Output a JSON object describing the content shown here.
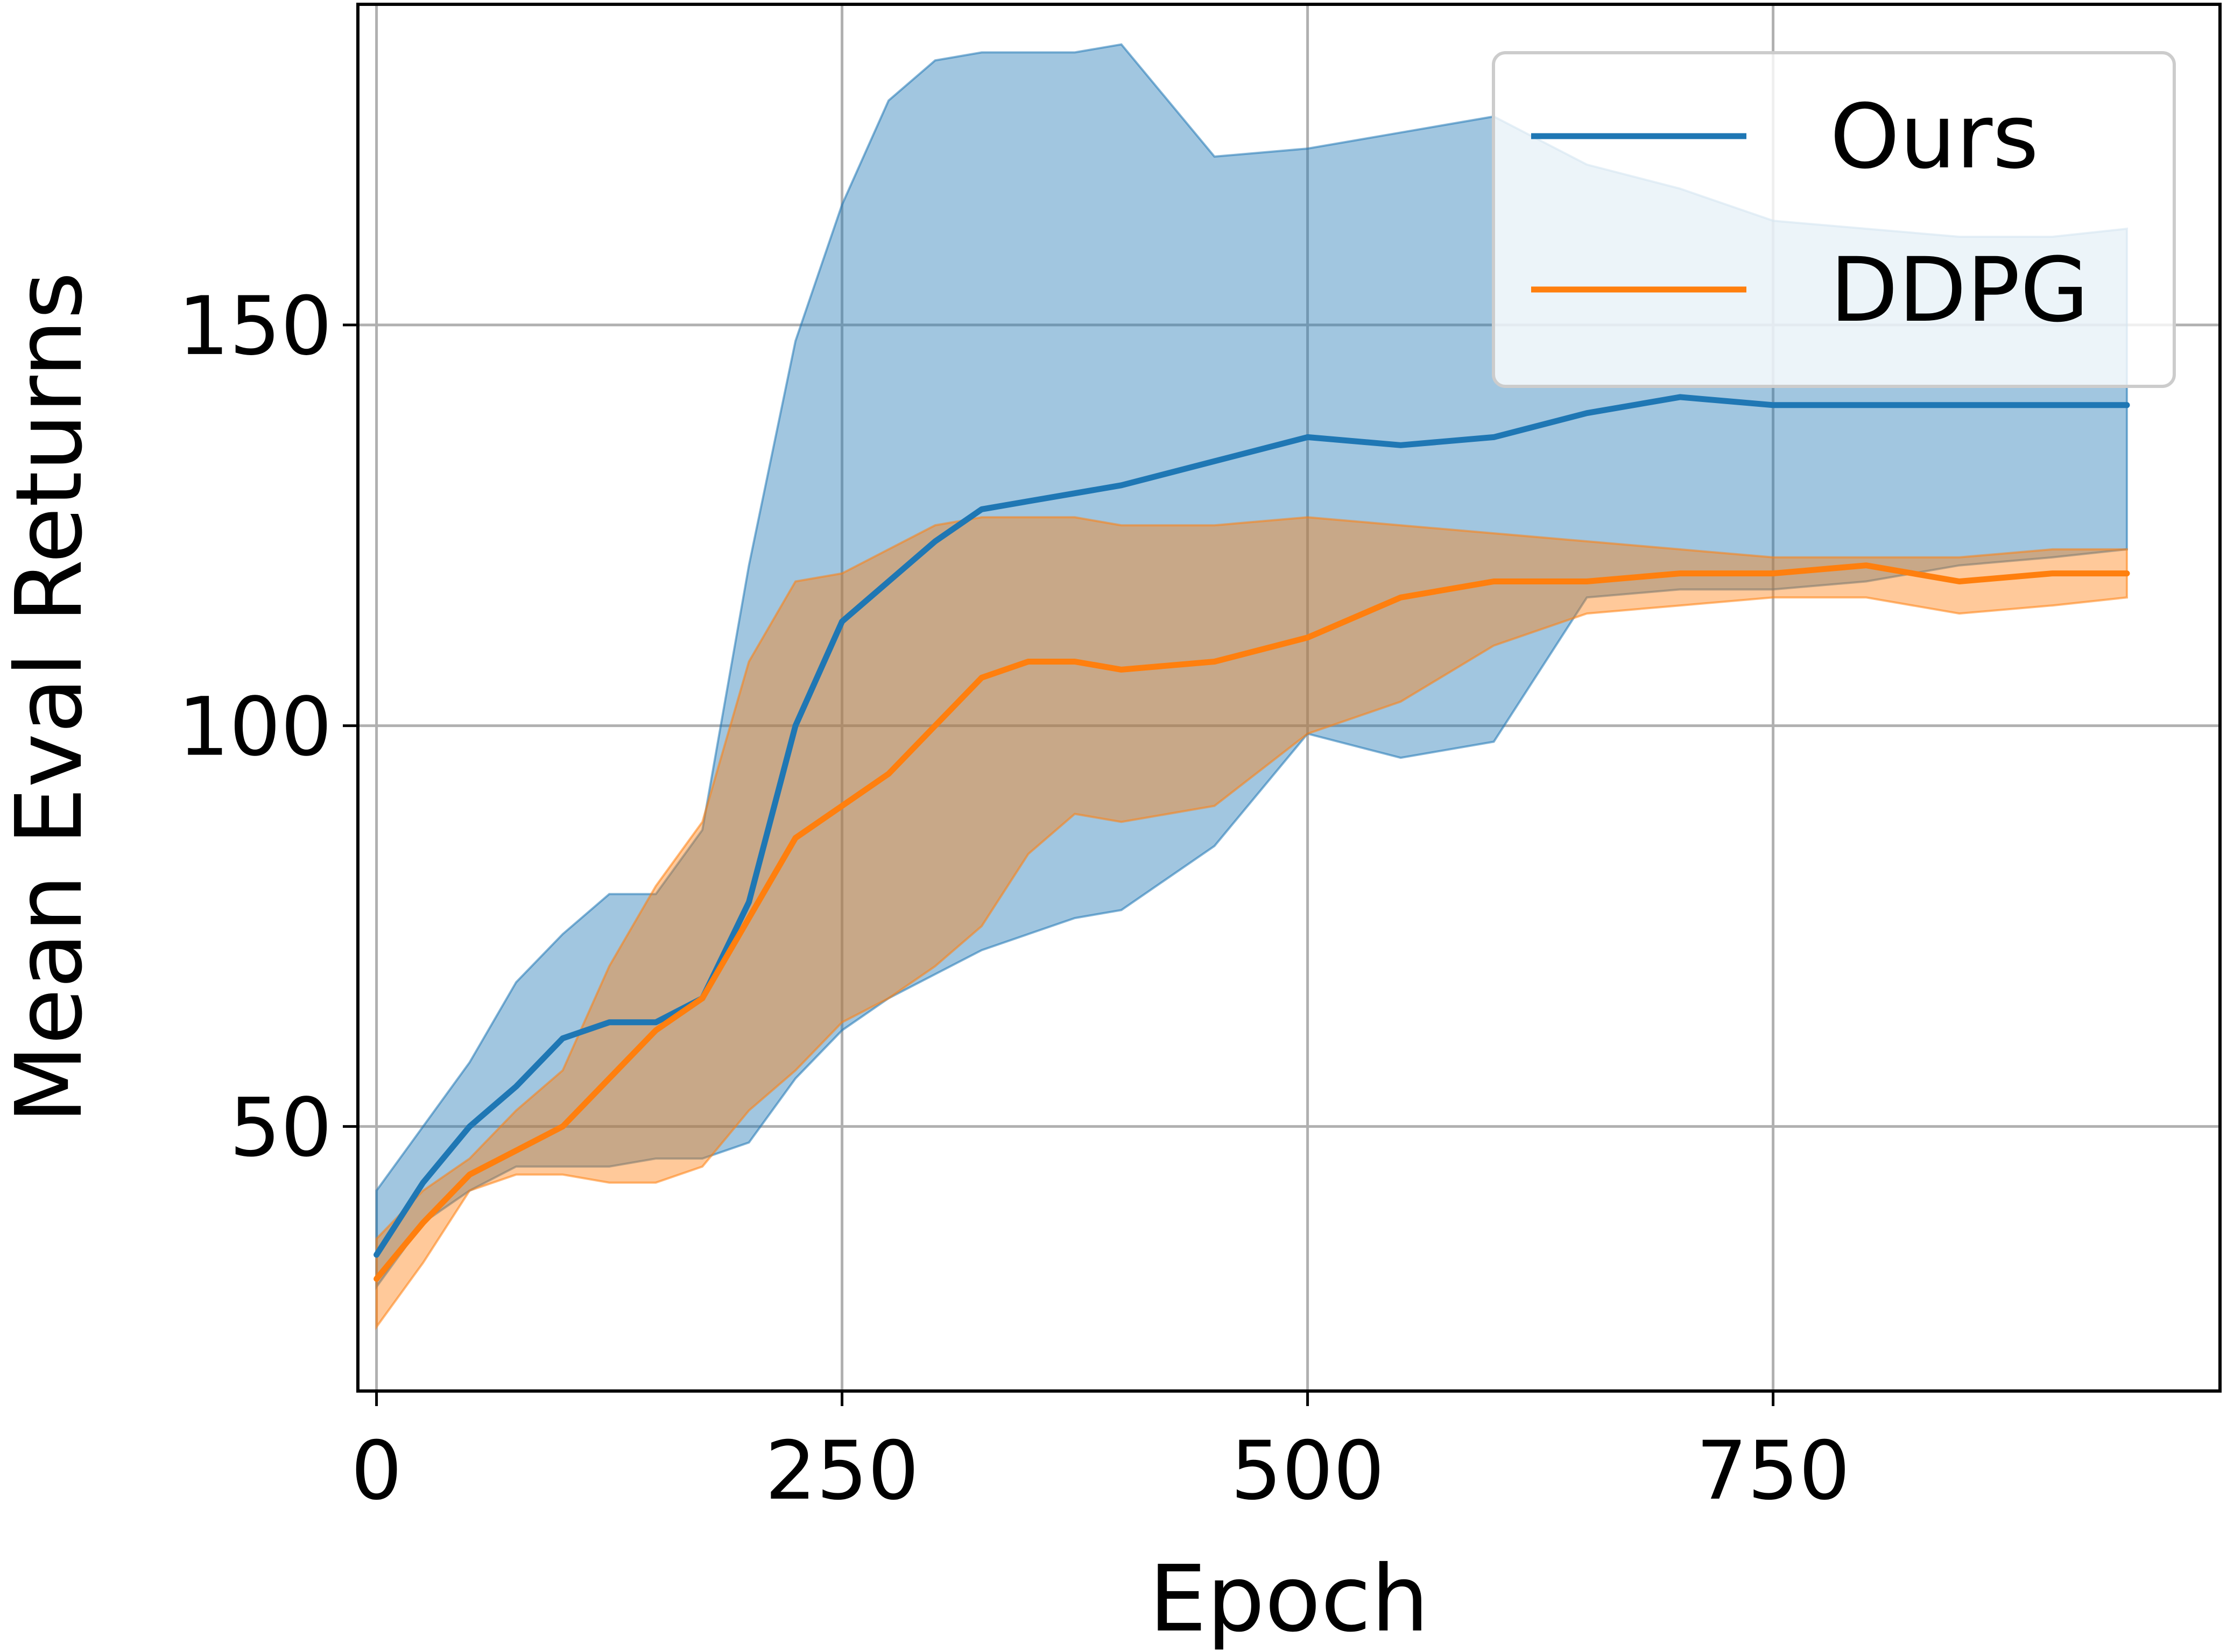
{
  "chart_data": {
    "type": "line",
    "xlabel": "Epoch",
    "ylabel": "Mean Eval Returns",
    "xlim": [
      -10,
      990
    ],
    "ylim": [
      17,
      190
    ],
    "xticks": [
      0,
      250,
      500,
      750
    ],
    "yticks": [
      50,
      100,
      150
    ],
    "grid": true,
    "legend_position": "top-right",
    "series": [
      {
        "name": "Ours",
        "color": "#1f77b4",
        "x": [
          0,
          25,
          50,
          75,
          100,
          125,
          150,
          175,
          200,
          225,
          250,
          275,
          300,
          325,
          350,
          375,
          400,
          450,
          500,
          550,
          600,
          650,
          700,
          750,
          800,
          850,
          900,
          940
        ],
        "mean": [
          34,
          43,
          50,
          55,
          61,
          63,
          63,
          66,
          78,
          100,
          113,
          118,
          123,
          127,
          128,
          129,
          130,
          133,
          136,
          135,
          136,
          139,
          141,
          140,
          140,
          140,
          140,
          140
        ],
        "upper": [
          42,
          50,
          58,
          68,
          74,
          79,
          79,
          87,
          120,
          148,
          165,
          178,
          183,
          184,
          184,
          184,
          185,
          171,
          172,
          174,
          176,
          170,
          167,
          163,
          162,
          161,
          161,
          162
        ],
        "lower": [
          30,
          38,
          42,
          45,
          45,
          45,
          46,
          46,
          48,
          56,
          62,
          66,
          69,
          72,
          74,
          76,
          77,
          85,
          99,
          96,
          98,
          116,
          117,
          117,
          118,
          120,
          121,
          122
        ]
      },
      {
        "name": "DDPG",
        "color": "#ff7f0e",
        "x": [
          0,
          25,
          50,
          75,
          100,
          125,
          150,
          175,
          200,
          225,
          250,
          275,
          300,
          325,
          350,
          375,
          400,
          450,
          500,
          550,
          600,
          650,
          700,
          750,
          800,
          850,
          900,
          940
        ],
        "mean": [
          31,
          38,
          44,
          47,
          50,
          56,
          62,
          66,
          76,
          86,
          90,
          94,
          100,
          106,
          108,
          108,
          107,
          108,
          111,
          116,
          118,
          118,
          119,
          119,
          120,
          118,
          119,
          119
        ],
        "upper": [
          36,
          42,
          46,
          52,
          57,
          70,
          80,
          88,
          108,
          118,
          119,
          122,
          125,
          126,
          126,
          126,
          125,
          125,
          126,
          125,
          124,
          123,
          122,
          121,
          121,
          121,
          122,
          122
        ],
        "lower": [
          25,
          33,
          42,
          44,
          44,
          43,
          43,
          45,
          52,
          57,
          63,
          66,
          70,
          75,
          84,
          89,
          88,
          90,
          99,
          103,
          110,
          114,
          115,
          116,
          116,
          114,
          115,
          116
        ]
      }
    ]
  }
}
